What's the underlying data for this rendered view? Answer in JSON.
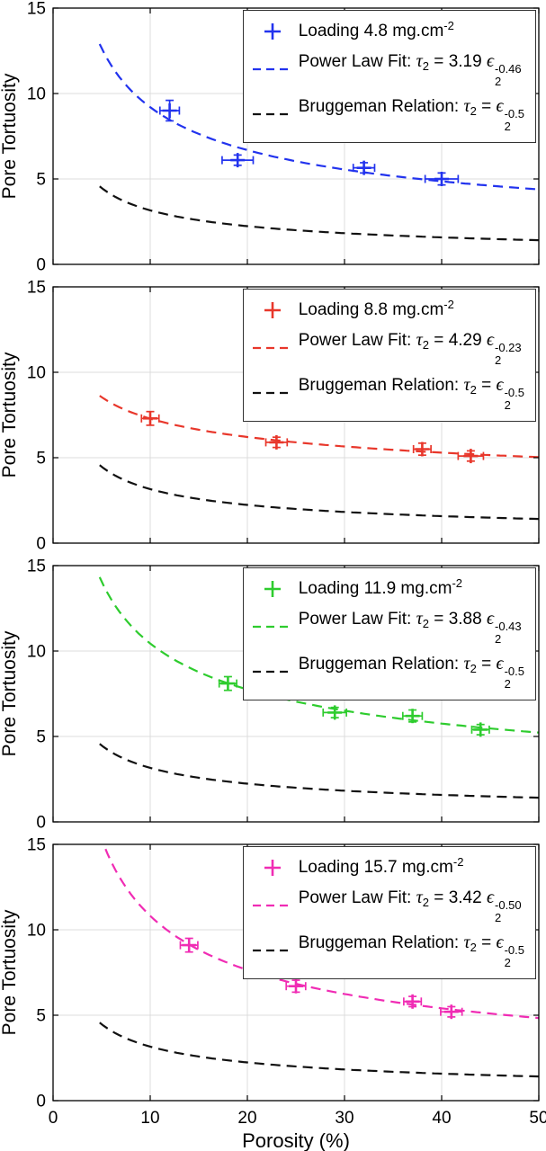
{
  "figure": {
    "xlabel": "Porosity (%)",
    "ylabel": "Pore Tortuosity",
    "symbols": {
      "tau": "τ",
      "epsilon": "ϵ"
    }
  },
  "chart_data": [
    {
      "type": "scatter",
      "panel": 1,
      "color": "#2233ee",
      "xlim": [
        0,
        50
      ],
      "ylim": [
        0,
        15
      ],
      "xticks": [
        0,
        10,
        20,
        30,
        40,
        50
      ],
      "yticks": [
        0,
        5,
        10,
        15
      ],
      "grid": true,
      "xlabel": "Porosity (%)",
      "ylabel": "Pore Tortuosity",
      "fit": {
        "a": 3.19,
        "b": -0.46
      },
      "bruggeman": {
        "a": 1,
        "b": -0.5
      },
      "points": [
        {
          "x": 12,
          "y": 9.0,
          "xerr": 1.0,
          "yerr": 0.6
        },
        {
          "x": 19,
          "y": 6.1,
          "xerr": 1.6,
          "yerr": 0.3
        },
        {
          "x": 32,
          "y": 5.65,
          "xerr": 1.1,
          "yerr": 0.3
        },
        {
          "x": 40,
          "y": 5.0,
          "xerr": 1.7,
          "yerr": 0.35
        }
      ],
      "legend": {
        "loading_text": "Loading 4.8 mg.cm",
        "loading_sup": "-2",
        "fit_prefix": "Power Law Fit: ",
        "fit_coeff": "3.19",
        "fit_exp": "-0.46",
        "sub": "2",
        "equals": " = ",
        "brug_prefix": "Bruggeman Relation: ",
        "brug_exp": "-0.5"
      }
    },
    {
      "type": "scatter",
      "panel": 2,
      "color": "#e8372b",
      "xlim": [
        0,
        50
      ],
      "ylim": [
        0,
        15
      ],
      "xticks": [
        0,
        10,
        20,
        30,
        40,
        50
      ],
      "yticks": [
        0,
        5,
        10,
        15
      ],
      "grid": true,
      "xlabel": "Porosity (%)",
      "ylabel": "Pore Tortuosity",
      "fit": {
        "a": 4.29,
        "b": -0.23
      },
      "bruggeman": {
        "a": 1,
        "b": -0.5
      },
      "points": [
        {
          "x": 10,
          "y": 7.3,
          "xerr": 0.9,
          "yerr": 0.4
        },
        {
          "x": 23,
          "y": 5.9,
          "xerr": 1.1,
          "yerr": 0.3
        },
        {
          "x": 38,
          "y": 5.5,
          "xerr": 0.9,
          "yerr": 0.35
        },
        {
          "x": 43,
          "y": 5.1,
          "xerr": 1.3,
          "yerr": 0.3
        }
      ],
      "legend": {
        "loading_text": "Loading 8.8 mg.cm",
        "loading_sup": "-2",
        "fit_prefix": "Power Law Fit: ",
        "fit_coeff": "4.29",
        "fit_exp": "-0.23",
        "sub": "2",
        "equals": " = ",
        "brug_prefix": "Bruggeman Relation: ",
        "brug_exp": "-0.5"
      }
    },
    {
      "type": "scatter",
      "panel": 3,
      "color": "#2ecc2e",
      "xlim": [
        0,
        50
      ],
      "ylim": [
        0,
        15
      ],
      "xticks": [
        0,
        10,
        20,
        30,
        40,
        50
      ],
      "yticks": [
        0,
        5,
        10,
        15
      ],
      "grid": true,
      "xlabel": "Porosity (%)",
      "ylabel": "Pore Tortuosity",
      "fit": {
        "a": 3.88,
        "b": -0.43
      },
      "bruggeman": {
        "a": 1,
        "b": -0.5
      },
      "points": [
        {
          "x": 18,
          "y": 8.1,
          "xerr": 0.9,
          "yerr": 0.4
        },
        {
          "x": 29,
          "y": 6.4,
          "xerr": 1.2,
          "yerr": 0.3
        },
        {
          "x": 37,
          "y": 6.2,
          "xerr": 1.0,
          "yerr": 0.35
        },
        {
          "x": 44,
          "y": 5.4,
          "xerr": 0.9,
          "yerr": 0.3
        }
      ],
      "legend": {
        "loading_text": "Loading 11.9 mg.cm",
        "loading_sup": "-2",
        "fit_prefix": "Power Law Fit: ",
        "fit_coeff": "3.88",
        "fit_exp": "-0.43",
        "sub": "2",
        "equals": " = ",
        "brug_prefix": "Bruggeman Relation: ",
        "brug_exp": "-0.5"
      }
    },
    {
      "type": "scatter",
      "panel": 4,
      "color": "#f02cb4",
      "xlim": [
        0,
        50
      ],
      "ylim": [
        0,
        15
      ],
      "xticks": [
        0,
        10,
        20,
        30,
        40,
        50
      ],
      "yticks": [
        0,
        5,
        10,
        15
      ],
      "grid": true,
      "xlabel": "Porosity (%)",
      "ylabel": "Pore Tortuosity",
      "fit": {
        "a": 3.42,
        "b": -0.5
      },
      "bruggeman": {
        "a": 1,
        "b": -0.5
      },
      "points": [
        {
          "x": 14,
          "y": 9.1,
          "xerr": 0.9,
          "yerr": 0.4
        },
        {
          "x": 25,
          "y": 6.7,
          "xerr": 1.0,
          "yerr": 0.35
        },
        {
          "x": 37,
          "y": 5.8,
          "xerr": 0.9,
          "yerr": 0.3
        },
        {
          "x": 41,
          "y": 5.2,
          "xerr": 1.1,
          "yerr": 0.3
        }
      ],
      "legend": {
        "loading_text": "Loading 15.7 mg.cm",
        "loading_sup": "-2",
        "fit_prefix": "Power Law Fit: ",
        "fit_coeff": "3.42",
        "fit_exp": "-0.50",
        "sub": "2",
        "equals": " = ",
        "brug_prefix": "Bruggeman Relation: ",
        "brug_exp": "-0.5"
      }
    }
  ]
}
